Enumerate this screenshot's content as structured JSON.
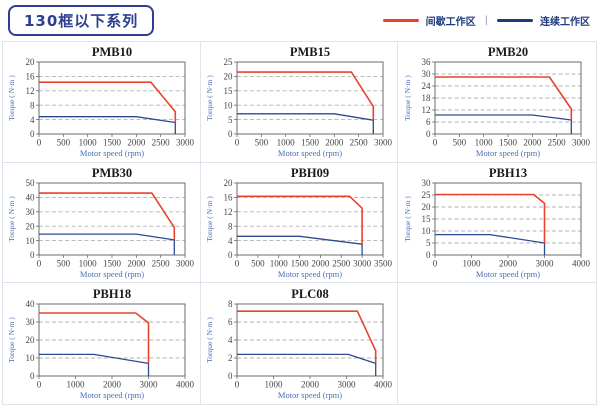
{
  "header": {
    "title": "130框以下系列",
    "legend": [
      {
        "label": "间歇工作区",
        "color": "#e8432c"
      },
      {
        "label": "连续工作区",
        "color": "#1f3a7d"
      }
    ],
    "legend_separator": "|"
  },
  "colors": {
    "intermittent_line": "#e8432c",
    "continuous_line": "#2e4a8f",
    "legend_text": "#1f3a7d",
    "header_accent": "#2d3f8f",
    "axis_label_text": "#4a6fb5",
    "tick_text": "#444444",
    "plot_border": "#6b6b6b",
    "grid_line": "#b3b3b3",
    "cell_border": "#dfe3ec"
  },
  "chart_data": [
    {
      "type": "line",
      "title": "PMB10",
      "xlabel": "Motor speed (rpm)",
      "ylabel": "Torque ( N·m )",
      "xlim": [
        0,
        3000
      ],
      "ylim": [
        0,
        20
      ],
      "xticks": [
        0,
        500,
        1000,
        1500,
        2000,
        2500,
        3000
      ],
      "yticks": [
        0,
        4,
        8,
        12,
        16,
        20
      ],
      "grid": "horizontal-dashed",
      "legend_position": "none",
      "series": [
        {
          "name": "间歇工作区",
          "color": "#e8432c",
          "points": [
            [
              0,
              14.4
            ],
            [
              2300,
              14.4
            ],
            [
              2800,
              6.2
            ],
            [
              2800,
              3.2
            ]
          ]
        },
        {
          "name": "连续工作区",
          "color": "#2e4a8f",
          "points": [
            [
              0,
              4.8
            ],
            [
              2000,
              4.8
            ],
            [
              2800,
              3.2
            ],
            [
              2800,
              0
            ]
          ]
        }
      ]
    },
    {
      "type": "line",
      "title": "PMB15",
      "xlabel": "Motor speed (rpm)",
      "ylabel": "Torque ( N·m )",
      "xlim": [
        0,
        3000
      ],
      "ylim": [
        0,
        25
      ],
      "xticks": [
        0,
        500,
        1000,
        1500,
        2000,
        2500,
        3000
      ],
      "yticks": [
        0,
        5,
        10,
        15,
        20,
        25
      ],
      "grid": "horizontal-dashed",
      "legend_position": "none",
      "series": [
        {
          "name": "间歇工作区",
          "color": "#e8432c",
          "points": [
            [
              0,
              21.5
            ],
            [
              2350,
              21.5
            ],
            [
              2800,
              9.5
            ],
            [
              2800,
              4.8
            ]
          ]
        },
        {
          "name": "连续工作区",
          "color": "#2e4a8f",
          "points": [
            [
              0,
              7
            ],
            [
              2000,
              7
            ],
            [
              2800,
              4.8
            ],
            [
              2800,
              0
            ]
          ]
        }
      ]
    },
    {
      "type": "line",
      "title": "PMB20",
      "xlabel": "Motor speed (rpm)",
      "ylabel": "Torque ( N·m )",
      "xlim": [
        0,
        3000
      ],
      "ylim": [
        0,
        36
      ],
      "xticks": [
        0,
        500,
        1000,
        1500,
        2000,
        2500,
        3000
      ],
      "yticks": [
        0,
        6,
        12,
        18,
        24,
        30,
        36
      ],
      "grid": "horizontal-dashed",
      "legend_position": "none",
      "series": [
        {
          "name": "间歇工作区",
          "color": "#e8432c",
          "points": [
            [
              0,
              28.5
            ],
            [
              2350,
              28.5
            ],
            [
              2800,
              12.5
            ],
            [
              2800,
              7
            ]
          ]
        },
        {
          "name": "连续工作区",
          "color": "#2e4a8f",
          "points": [
            [
              0,
              9.5
            ],
            [
              2000,
              9.5
            ],
            [
              2800,
              7
            ],
            [
              2800,
              0
            ]
          ]
        }
      ]
    },
    {
      "type": "line",
      "title": "PMB30",
      "xlabel": "Motor speed (rpm)",
      "ylabel": "Torque ( N·m )",
      "xlim": [
        0,
        3000
      ],
      "ylim": [
        0,
        50
      ],
      "xticks": [
        0,
        500,
        1000,
        1500,
        2000,
        2500,
        3000
      ],
      "yticks": [
        0,
        10,
        20,
        30,
        40,
        50
      ],
      "grid": "horizontal-dashed",
      "legend_position": "none",
      "series": [
        {
          "name": "间歇工作区",
          "color": "#e8432c",
          "points": [
            [
              0,
              43
            ],
            [
              2320,
              43
            ],
            [
              2780,
              19
            ],
            [
              2780,
              10.5
            ]
          ]
        },
        {
          "name": "连续工作区",
          "color": "#2e4a8f",
          "points": [
            [
              0,
              14.5
            ],
            [
              2000,
              14.5
            ],
            [
              2780,
              10.5
            ],
            [
              2780,
              0
            ]
          ]
        }
      ]
    },
    {
      "type": "line",
      "title": "PBH09",
      "xlabel": "Motor speed (rpm)",
      "ylabel": "Torque ( N·m )",
      "xlim": [
        0,
        3500
      ],
      "ylim": [
        0,
        20
      ],
      "xticks": [
        0,
        500,
        1000,
        1500,
        2000,
        2500,
        3000,
        3500
      ],
      "yticks": [
        0,
        4,
        8,
        12,
        16,
        20
      ],
      "grid": "horizontal-dashed",
      "legend_position": "none",
      "series": [
        {
          "name": "间歇工作区",
          "color": "#e8432c",
          "points": [
            [
              0,
              16.3
            ],
            [
              2700,
              16.3
            ],
            [
              3000,
              13
            ],
            [
              3000,
              3
            ]
          ]
        },
        {
          "name": "连续工作区",
          "color": "#2e4a8f",
          "points": [
            [
              0,
              5.2
            ],
            [
              1500,
              5.2
            ],
            [
              3000,
              3
            ],
            [
              3000,
              0
            ]
          ]
        }
      ]
    },
    {
      "type": "line",
      "title": "PBH13",
      "xlabel": "Motor speed (rpm)",
      "ylabel": "Torque ( N·m )",
      "xlim": [
        0,
        4000
      ],
      "ylim": [
        0,
        30
      ],
      "xticks": [
        0,
        1000,
        2000,
        3000,
        4000
      ],
      "yticks": [
        0,
        5,
        10,
        15,
        20,
        25,
        30
      ],
      "grid": "horizontal-dashed",
      "legend_position": "none",
      "series": [
        {
          "name": "间歇工作区",
          "color": "#e8432c",
          "points": [
            [
              0,
              25.2
            ],
            [
              2700,
              25.2
            ],
            [
              3000,
              21.5
            ],
            [
              3000,
              5
            ]
          ]
        },
        {
          "name": "连续工作区",
          "color": "#2e4a8f",
          "points": [
            [
              0,
              8.5
            ],
            [
              1500,
              8.5
            ],
            [
              3000,
              5
            ],
            [
              3000,
              0
            ]
          ]
        }
      ]
    },
    {
      "type": "line",
      "title": "PBH18",
      "xlabel": "Motor speed (rpm)",
      "ylabel": "Torque ( N·m )",
      "xlim": [
        0,
        4000
      ],
      "ylim": [
        0,
        40
      ],
      "xticks": [
        0,
        1000,
        2000,
        3000,
        4000
      ],
      "yticks": [
        0,
        10,
        20,
        30,
        40
      ],
      "grid": "horizontal-dashed",
      "legend_position": "none",
      "series": [
        {
          "name": "间歇工作区",
          "color": "#e8432c",
          "points": [
            [
              0,
              35
            ],
            [
              2650,
              35
            ],
            [
              3000,
              29.5
            ],
            [
              3000,
              7
            ]
          ]
        },
        {
          "name": "连续工作区",
          "color": "#2e4a8f",
          "points": [
            [
              0,
              12
            ],
            [
              1500,
              12
            ],
            [
              3000,
              7
            ],
            [
              3000,
              0
            ]
          ]
        }
      ]
    },
    {
      "type": "line",
      "title": "PLC08",
      "xlabel": "Motor speed (rpm)",
      "ylabel": "Torque ( N·m )",
      "xlim": [
        0,
        4000
      ],
      "ylim": [
        0,
        8
      ],
      "xticks": [
        0,
        1000,
        2000,
        3000,
        4000
      ],
      "yticks": [
        0,
        2,
        4,
        6,
        8
      ],
      "grid": "horizontal-dashed",
      "legend_position": "none",
      "series": [
        {
          "name": "间歇工作区",
          "color": "#e8432c",
          "points": [
            [
              0,
              7.2
            ],
            [
              3300,
              7.2
            ],
            [
              3800,
              2.8
            ],
            [
              3800,
              1.4
            ]
          ]
        },
        {
          "name": "连续工作区",
          "color": "#2e4a8f",
          "points": [
            [
              0,
              2.4
            ],
            [
              3050,
              2.4
            ],
            [
              3800,
              1.4
            ],
            [
              3800,
              0
            ]
          ]
        }
      ]
    }
  ]
}
